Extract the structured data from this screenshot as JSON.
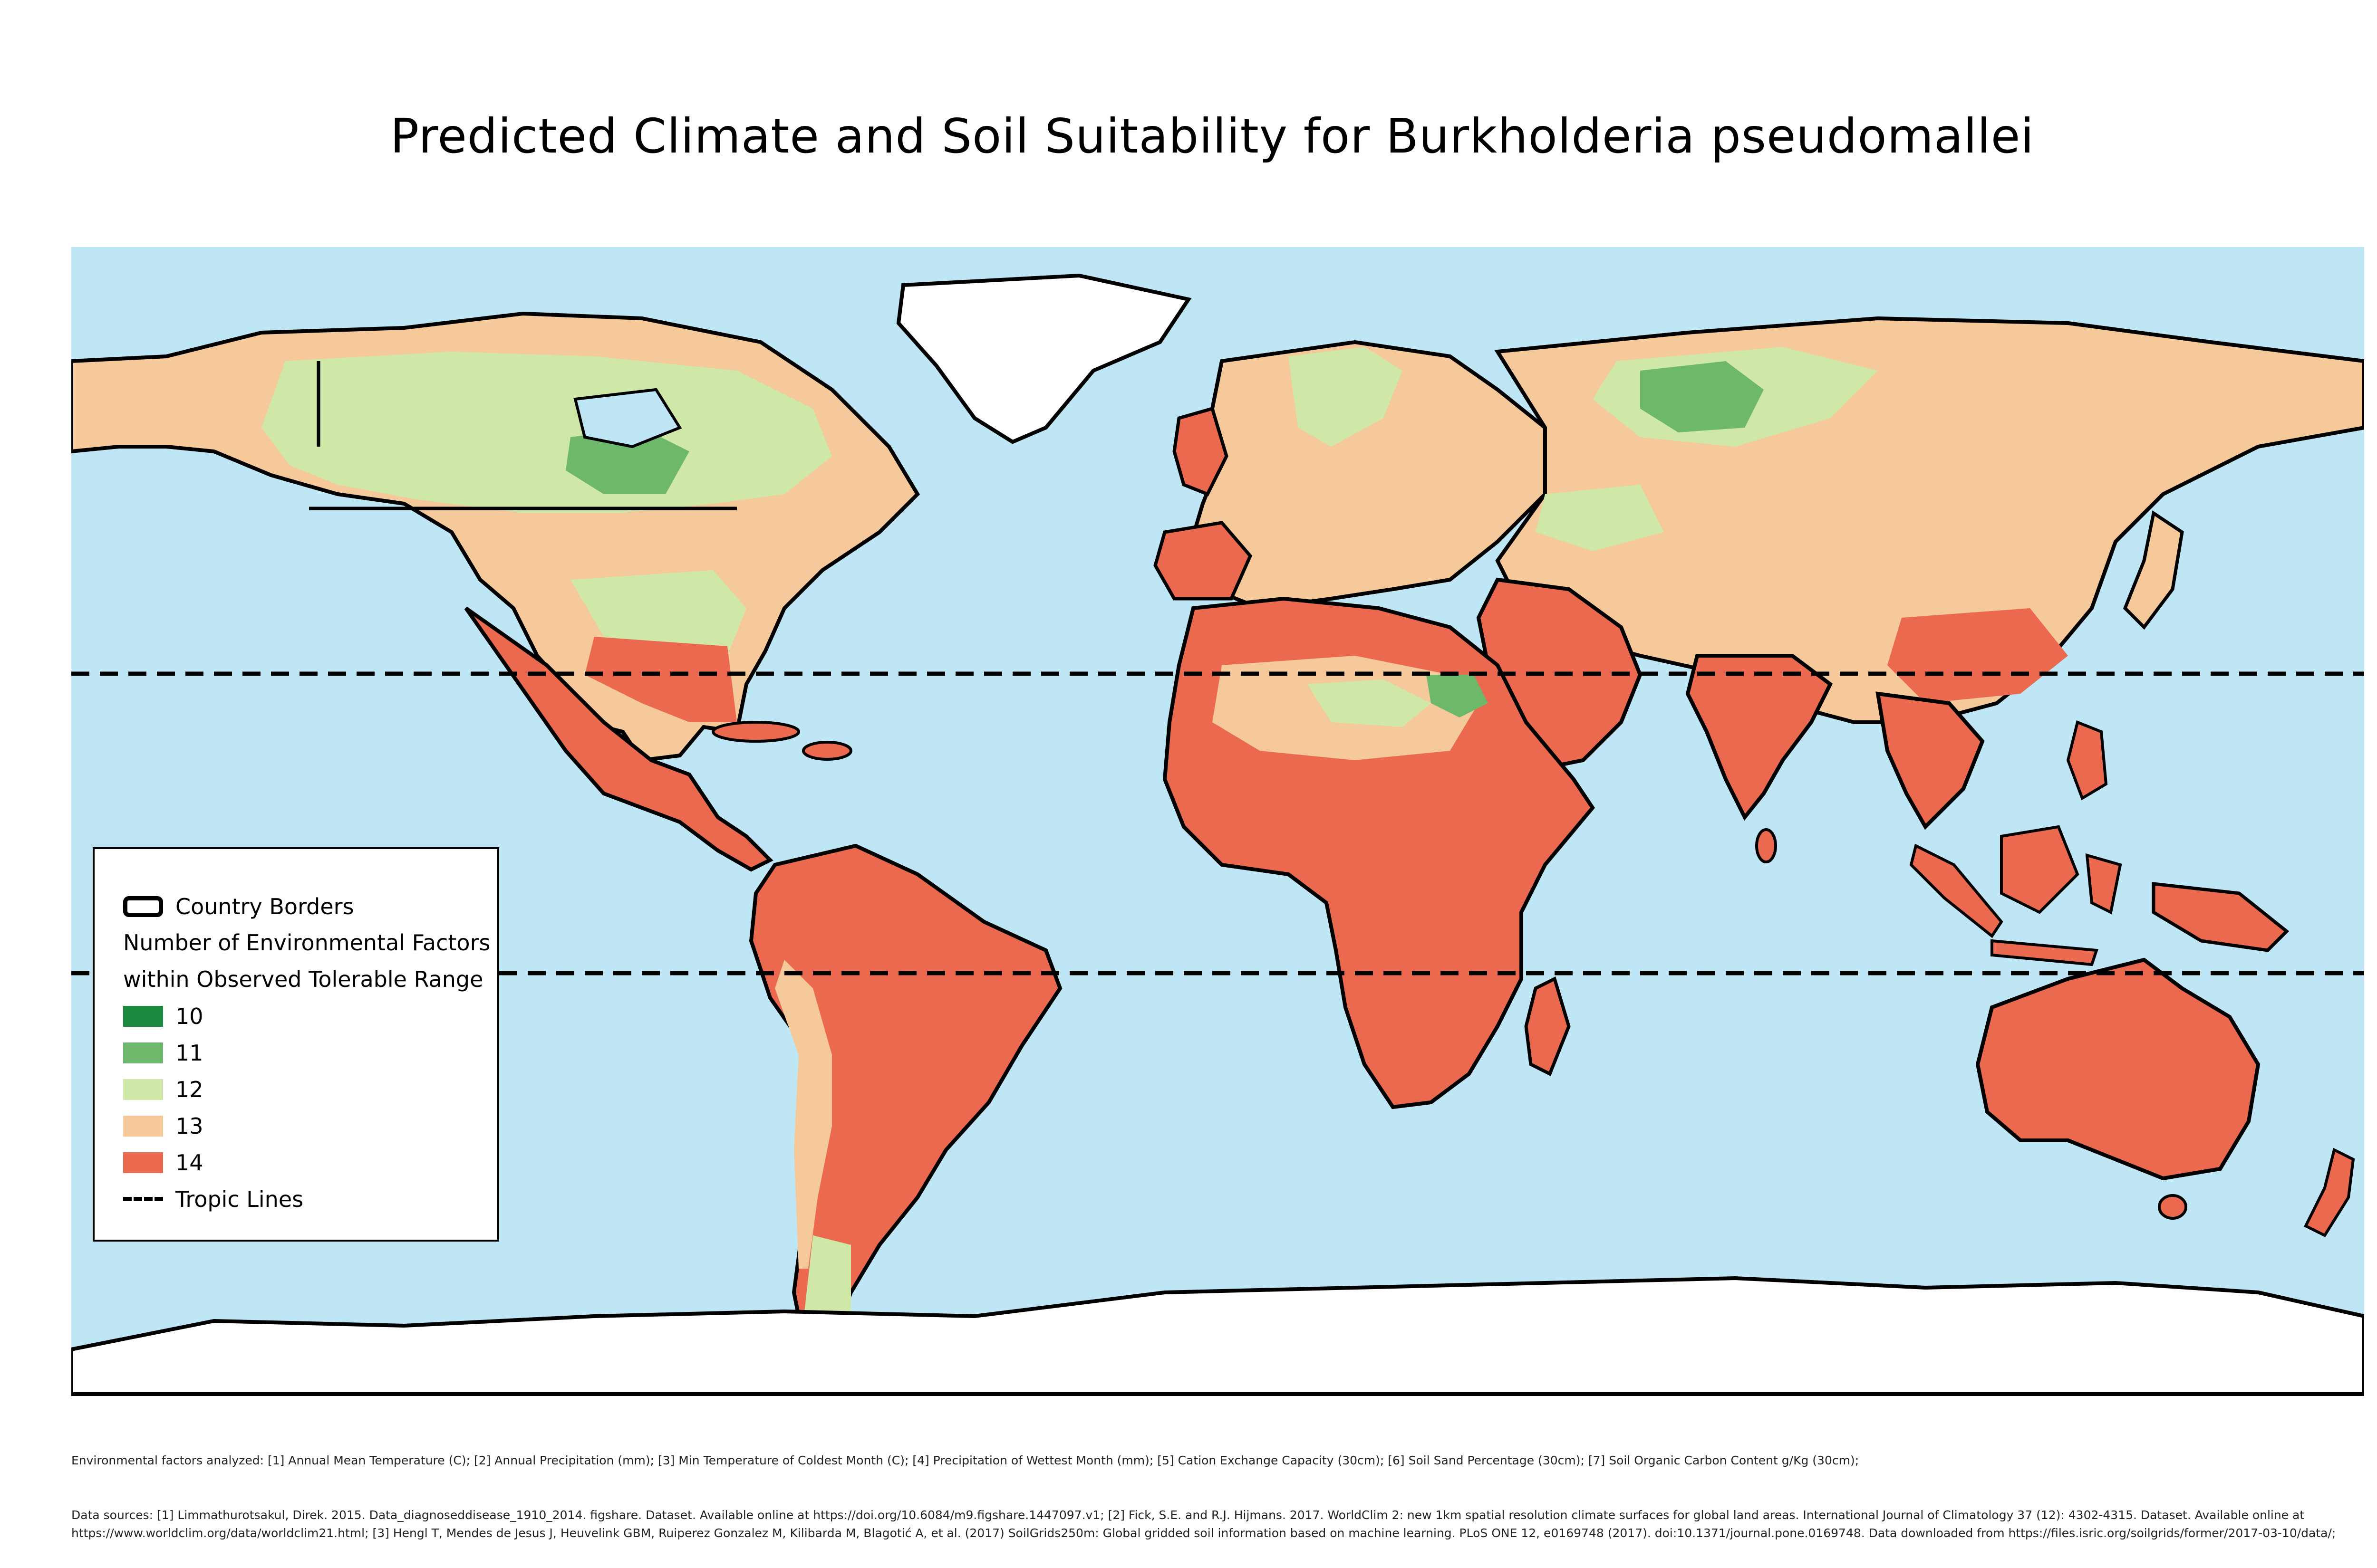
{
  "title": "Predicted Climate and Soil Suitability for Burkholderia pseudomallei",
  "colors": {
    "ocean": "#bfe6f5",
    "ice": "#ffffff",
    "border": "#000000",
    "class_10": "#1a8a3f",
    "class_11": "#6db86b",
    "class_12": "#cfe8a8",
    "class_13": "#f6c99a",
    "class_14": "#eb6a4f"
  },
  "legend": {
    "country_borders": "Country Borders",
    "heading_line1": "Number of Environmental Factors",
    "heading_line2": "within Observed Tolerable Range",
    "classes": [
      {
        "label": "10",
        "color": "#1a8a3f"
      },
      {
        "label": "11",
        "color": "#6db86b"
      },
      {
        "label": "12",
        "color": "#cfe8a8"
      },
      {
        "label": "13",
        "color": "#f6c99a"
      },
      {
        "label": "14",
        "color": "#eb6a4f"
      }
    ],
    "tropic_lines": "Tropic Lines"
  },
  "footnotes": {
    "factors": "Environmental factors analyzed: [1] Annual Mean Temperature (C);   [2] Annual Precipitation (mm);   [3] Min Temperature of Coldest Month (C);   [4] Precipitation of Wettest Month (mm);   [5] Cation Exchange Capacity (30cm);   [6] Soil Sand Percentage (30cm);   [7] Soil Organic Carbon Content g/Kg (30cm);",
    "sources": "Data sources: [1] Limmathurotsakul, Direk. 2015. Data_diagnoseddisease_1910_2014. figshare. Dataset. Available online at https://doi.org/10.6084/m9.figshare.1447097.v1;   [2] Fick, S.E. and R.J. Hijmans. 2017. WorldClim 2: new 1km spatial resolution climate surfaces for global land areas. International Journal of Climatology 37 (12): 4302-4315. Dataset. Available online at https://www.worldclim.org/data/worldclim21.html;   [3] Hengl T, Mendes de Jesus J, Heuvelink GBM, Ruiperez Gonzalez M, Kilibarda M, Blagotić A, et al. (2017) SoilGrids250m: Global gridded soil information based on machine learning. PLoS ONE 12, e0169748 (2017).  doi:10.1371/journal.pone.0169748. Data downloaded from https://files.isric.org/soilgrids/former/2017-03-10/data/;"
  }
}
